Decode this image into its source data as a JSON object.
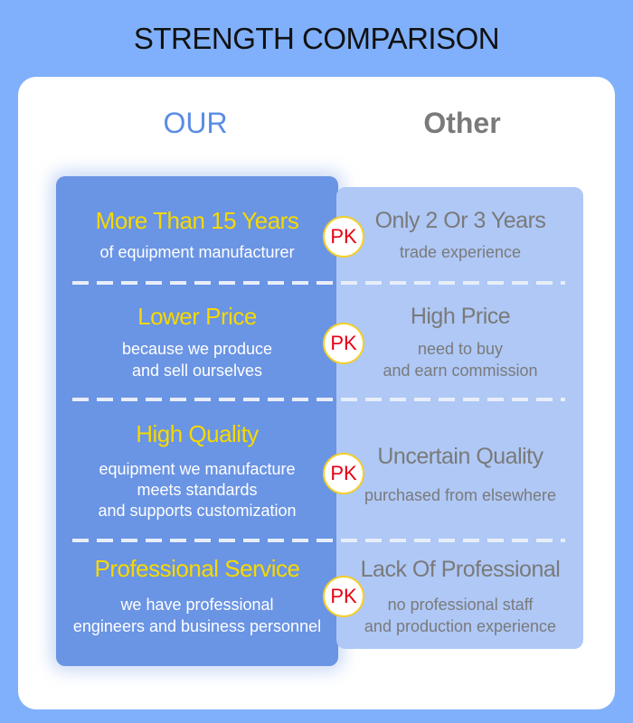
{
  "title": "STRENGTH COMPARISON",
  "columns": {
    "our": "OUR",
    "other": "Other"
  },
  "badge": "PK",
  "colors": {
    "background": "#80b0fb",
    "our_panel": "#6a94e4",
    "other_panel": "#afc8f6",
    "highlight": "#f6d900",
    "badge_text": "#e60012"
  },
  "rows": [
    {
      "our_title": "More Than 15 Years",
      "our_lines": [
        "of equipment manufacturer"
      ],
      "other_title": "Only 2 Or 3 Years",
      "other_lines": [
        "trade experience"
      ]
    },
    {
      "our_title": "Lower Price",
      "our_lines": [
        "because we produce",
        "and sell ourselves"
      ],
      "other_title": "High Price",
      "other_lines": [
        "need to buy",
        "and earn commission"
      ]
    },
    {
      "our_title": "High Quality",
      "our_lines": [
        "equipment we manufacture",
        "meets standards",
        "and supports customization"
      ],
      "other_title": "Uncertain Quality",
      "other_lines": [
        "purchased from elsewhere"
      ]
    },
    {
      "our_title": "Professional Service",
      "our_lines": [
        "we have professional",
        "engineers and business personnel"
      ],
      "other_title": "Lack Of Professional",
      "other_lines": [
        "no professional staff",
        "and production experience"
      ]
    }
  ]
}
